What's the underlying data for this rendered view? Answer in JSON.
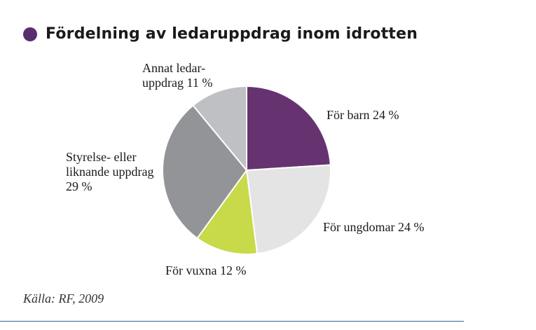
{
  "header": {
    "title": "Fördelning av ledaruppdrag inom idrotten",
    "bullet_color": "#5a2d6e"
  },
  "chart_data": {
    "type": "pie",
    "title": "Fördelning av ledaruppdrag inom idrotten",
    "slices": [
      {
        "label": "För barn 24 %",
        "value": 24,
        "color": "#663370"
      },
      {
        "label": "För ungdomar 24 %",
        "value": 24,
        "color": "#e4e4e4"
      },
      {
        "label": "För vuxna 12 %",
        "value": 12,
        "color": "#c8d94a"
      },
      {
        "label": "Styrelse- eller\nliknande uppdrag\n29 %",
        "value": 29,
        "color": "#939498"
      },
      {
        "label": "Annat ledar-\nuppdrag 11 %",
        "value": 11,
        "color": "#bfc0c4"
      }
    ],
    "start": "12 o'clock",
    "direction": "clockwise"
  },
  "footer": {
    "source": "Källa: RF, 2009"
  }
}
